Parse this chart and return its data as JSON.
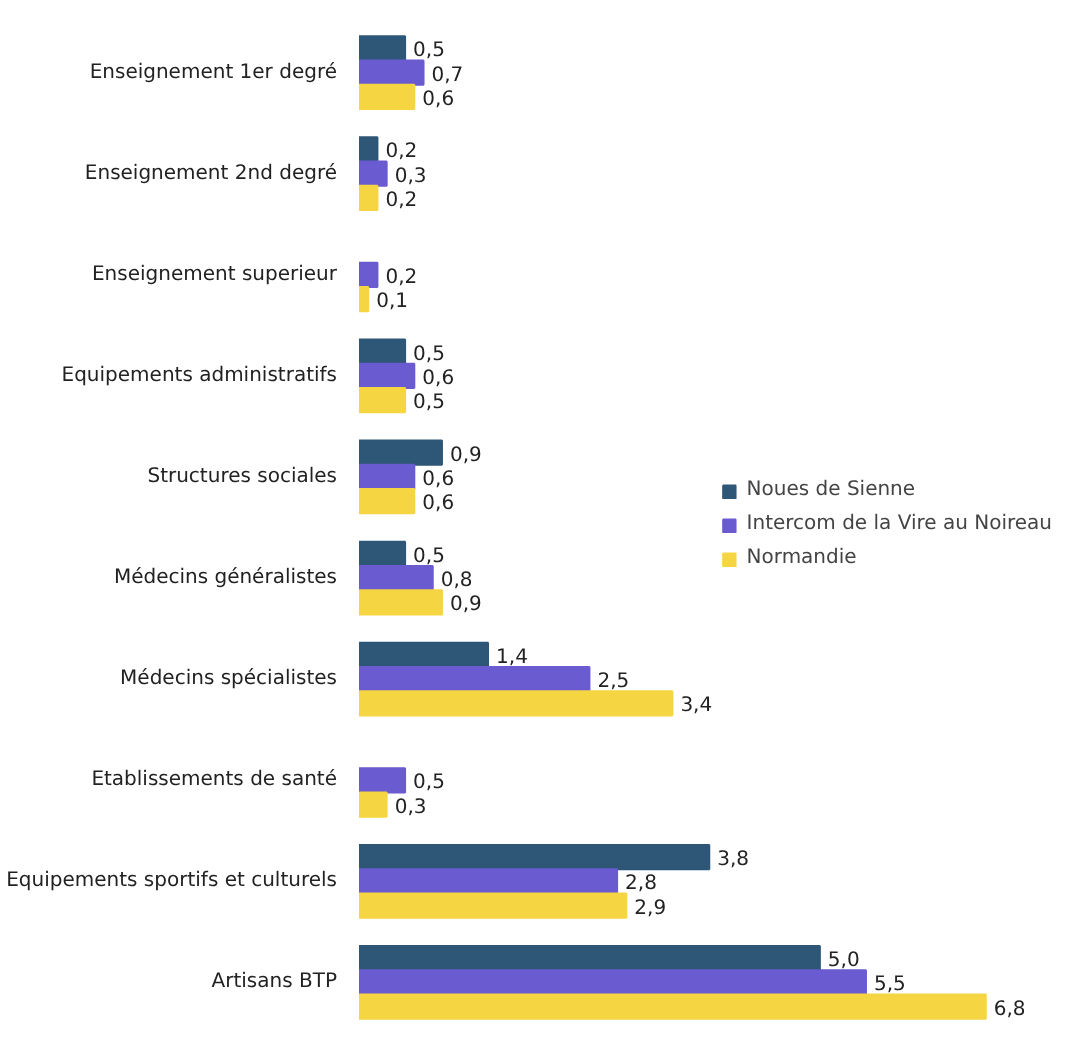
{
  "chart_data": {
    "type": "bar",
    "orientation": "horizontal",
    "categories": [
      "Enseignement 1er degré",
      "Enseignement 2nd degré",
      "Enseignement superieur",
      "Equipements administratifs",
      "Structures sociales",
      "Médecins généralistes",
      "Médecins spécialistes",
      "Etablissements de santé",
      "Equipements sportifs et culturels",
      "Artisans BTP"
    ],
    "series": [
      {
        "name": "Noues de Sienne",
        "color": "#2e5676",
        "values": [
          0.5,
          0.2,
          null,
          0.5,
          0.9,
          0.5,
          1.4,
          null,
          3.8,
          5.0
        ],
        "value_labels": [
          "0,5",
          "0,2",
          null,
          "0,5",
          "0,9",
          "0,5",
          "1,4",
          null,
          "3,8",
          "5,0"
        ]
      },
      {
        "name": "Intercom de la Vire au Noireau",
        "color": "#6a5bd0",
        "values": [
          0.7,
          0.3,
          0.2,
          0.6,
          0.6,
          0.8,
          2.5,
          0.5,
          2.8,
          5.5
        ],
        "value_labels": [
          "0,7",
          "0,3",
          "0,2",
          "0,6",
          "0,6",
          "0,8",
          "2,5",
          "0,5",
          "2,8",
          "5,5"
        ]
      },
      {
        "name": "Normandie",
        "color": "#f5d642",
        "values": [
          0.6,
          0.2,
          0.1,
          0.5,
          0.6,
          0.9,
          3.4,
          0.3,
          2.9,
          6.8
        ],
        "value_labels": [
          "0,6",
          "0,2",
          "0,1",
          "0,5",
          "0,6",
          "0,9",
          "3,4",
          "0,3",
          "2,9",
          "6,8"
        ]
      }
    ],
    "legend": "right"
  }
}
